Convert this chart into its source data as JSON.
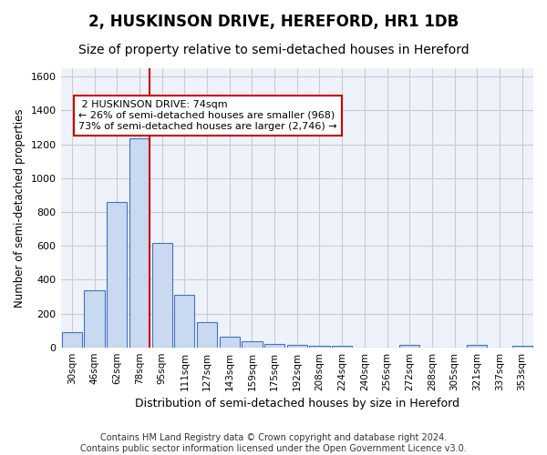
{
  "title": "2, HUSKINSON DRIVE, HEREFORD, HR1 1DB",
  "subtitle": "Size of property relative to semi-detached houses in Hereford",
  "xlabel": "Distribution of semi-detached houses by size in Hereford",
  "ylabel": "Number of semi-detached properties",
  "categories": [
    "30sqm",
    "46sqm",
    "62sqm",
    "78sqm",
    "95sqm",
    "111sqm",
    "127sqm",
    "143sqm",
    "159sqm",
    "175sqm",
    "192sqm",
    "208sqm",
    "224sqm",
    "240sqm",
    "256sqm",
    "272sqm",
    "288sqm",
    "305sqm",
    "321sqm",
    "337sqm",
    "353sqm"
  ],
  "values": [
    90,
    335,
    860,
    1235,
    615,
    310,
    150,
    65,
    35,
    22,
    13,
    8,
    8,
    0,
    0,
    12,
    0,
    0,
    12,
    0,
    10
  ],
  "bar_color": "#c9d9f0",
  "bar_edge_color": "#4472c4",
  "highlight_idx": 3,
  "highlight_label": "2 HUSKINSON DRIVE: 74sqm",
  "smaller_pct": "26%",
  "smaller_n": "968",
  "larger_pct": "73%",
  "larger_n": "2,746",
  "annotation_line_color": "#cc0000",
  "ylim": [
    0,
    1650
  ],
  "yticks": [
    0,
    200,
    400,
    600,
    800,
    1000,
    1200,
    1400,
    1600
  ],
  "grid_color": "#cccccc",
  "bg_color": "#eef2fa",
  "footer_line1": "Contains HM Land Registry data © Crown copyright and database right 2024.",
  "footer_line2": "Contains public sector information licensed under the Open Government Licence v3.0.",
  "title_fontsize": 12,
  "subtitle_fontsize": 10,
  "footer_fontsize": 7
}
